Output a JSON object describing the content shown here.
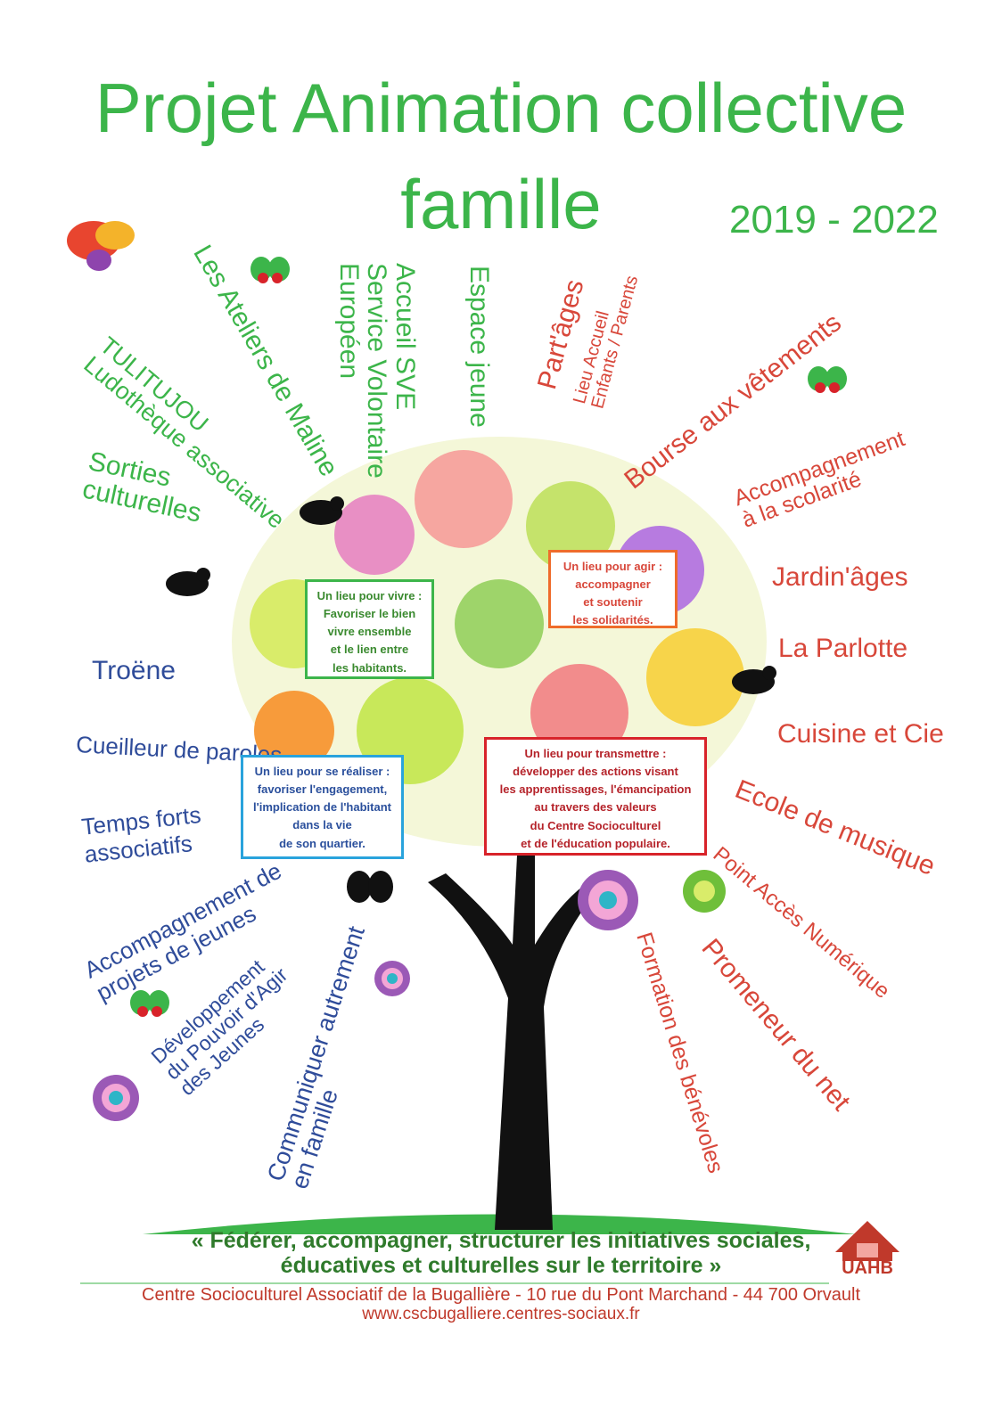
{
  "poster": {
    "title_line1": "Projet Animation collective",
    "title_line2": "famille",
    "years": "2019 - 2022"
  },
  "activities": {
    "ateliers": "Les Ateliers de Maline",
    "sve": "Accueil SVE\nService Volontaire\nEuropéen",
    "espace_jeune": "Espace jeune",
    "partages": "Part'âges",
    "lieu_accueil": "Lieu Accueil\nEnfants / Parents",
    "bourse": "Bourse aux vêtements",
    "accompagnement_scolarite": "Accompagnement\nà la scolarité",
    "tulitujou": "TULITUJOU\nLudothèque associative",
    "sorties": "Sorties\nculturelles",
    "jardinages": "Jardin'âges",
    "parlotte": "La Parlotte",
    "troene": "Troëne",
    "cuisine": "Cuisine et Cie",
    "cueilleur": "Cueilleur de paroles",
    "ecole_musique": "Ecole de musique",
    "temps_forts": "Temps forts\nassociatifs",
    "point_acces": "Point Accès Numérique",
    "accompagnement_jeunes": "Accompagnement de\nprojets de jeunes",
    "developpement": "Développement\ndu Pouvoir d'Agir\ndes Jeunes",
    "communiquer": "Communiquer autrement\nen famille",
    "formation": "Formation des bénévoles",
    "promeneur": "Promeneur du net"
  },
  "boxes": {
    "vivre": [
      "Un lieu pour vivre :",
      "Favoriser le bien",
      "vivre ensemble",
      "et le lien entre",
      "les habitants."
    ],
    "agir": [
      "Un lieu pour agir :",
      "accompagner",
      "et soutenir",
      "les solidarités."
    ],
    "realiser": [
      "Un lieu pour se réaliser :",
      "favoriser l'engagement,",
      "l'implication de l'habitant",
      "dans la vie",
      "de son quartier."
    ],
    "transmettre": [
      "Un lieu pour transmettre :",
      "développer des actions visant",
      "les apprentissages, l'émancipation",
      "au travers des valeurs",
      "du Centre Socioculturel",
      "et de l'éducation populaire."
    ]
  },
  "tagline": {
    "line1": "« Fédérer, accompagner, structurer les initiatives sociales,",
    "line2": "éducatives et culturelles sur le territoire »"
  },
  "footer": {
    "address": "Centre Socioculturel Associatif de la Bugallière - 10 rue du Pont Marchand - 44 700 Orvault",
    "url": "www.cscbugalliere.centres-sociaux.fr"
  },
  "logo": {
    "text": "UAHB"
  },
  "colors": {
    "green": "#3cb54a",
    "red": "#d8473a",
    "blue": "#2f4c9a",
    "orange": "#ef6c2b",
    "cyan": "#29a3dc"
  }
}
